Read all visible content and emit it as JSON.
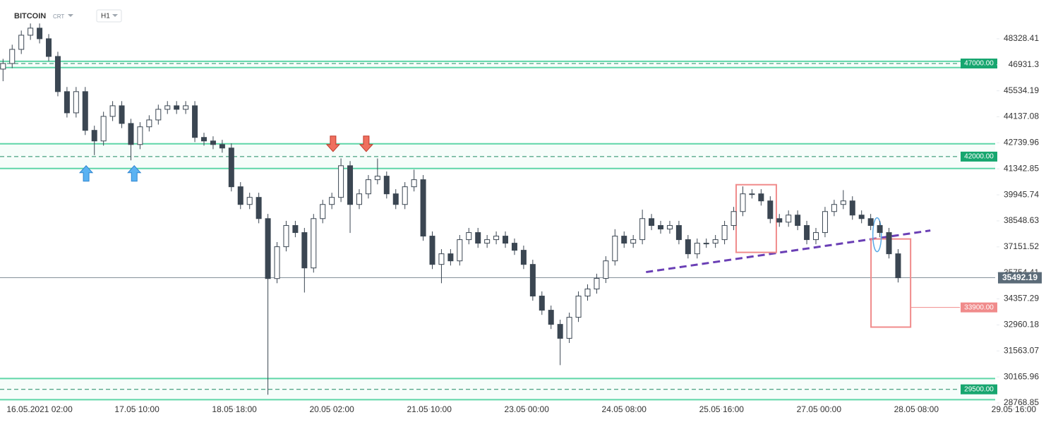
{
  "chart_data": {
    "type": "candlestick",
    "symbol": "BITCOIN",
    "chart_style": "CRT",
    "interval": "H1",
    "candle_color": "#3b4652",
    "xlim": [
      -13,
      322
    ],
    "ylim": [
      28503.8,
      50107.8
    ],
    "yticks": [
      28768.85,
      30165.96,
      31563.07,
      32960.18,
      34357.29,
      35754.41,
      37151.52,
      38548.63,
      39945.74,
      41342.85,
      42739.96,
      44137.08,
      45534.19,
      46931.3,
      48328.41
    ],
    "xticks": [
      {
        "value": 0,
        "label": "16.05.2021  02:00"
      },
      {
        "value": 32,
        "label": "17.05  10:00"
      },
      {
        "value": 64,
        "label": "18.05  18:00"
      },
      {
        "value": 96,
        "label": "20.05  02:00"
      },
      {
        "value": 128,
        "label": "21.05  10:00"
      },
      {
        "value": 160,
        "label": "23.05  00:00"
      },
      {
        "value": 192,
        "label": "24.05  08:00"
      },
      {
        "value": 224,
        "label": "25.05  16:00"
      },
      {
        "value": 256,
        "label": "27.05  00:00"
      },
      {
        "value": 288,
        "label": "28.05  08:00"
      },
      {
        "value": 320,
        "label": "29.05  16:00"
      }
    ],
    "x": [
      -12,
      -9,
      -6,
      -3,
      0,
      3,
      6,
      9,
      12,
      15,
      18,
      21,
      24,
      27,
      30,
      33,
      36,
      39,
      42,
      45,
      48,
      51,
      54,
      57,
      60,
      63,
      66,
      69,
      72,
      75,
      78,
      81,
      84,
      87,
      90,
      93,
      96,
      99,
      102,
      105,
      108,
      111,
      114,
      117,
      120,
      123,
      126,
      129,
      132,
      135,
      138,
      141,
      144,
      147,
      150,
      153,
      156,
      159,
      162,
      165,
      168,
      171,
      174,
      177,
      180,
      183,
      186,
      189,
      192,
      195,
      198,
      201,
      204,
      207,
      210,
      213,
      216,
      219,
      222,
      225,
      228,
      231,
      234,
      237,
      240,
      243,
      246,
      249,
      252,
      255,
      258,
      261,
      264,
      267,
      270,
      273,
      276,
      279,
      282
    ],
    "open": [
      46700,
      47000,
      47760,
      48520,
      48900,
      48330,
      47380,
      45490,
      44350,
      45490,
      43410,
      42840,
      44160,
      44730,
      43780,
      42650,
      43600,
      43970,
      44540,
      44730,
      44540,
      44730,
      43030,
      42840,
      42650,
      42460,
      40380,
      39430,
      39810,
      38670,
      35450,
      37160,
      38300,
      37920,
      36020,
      38670,
      39430,
      39810,
      41510,
      39430,
      40000,
      40760,
      40950,
      40000,
      39430,
      40380,
      40760,
      37730,
      36210,
      36780,
      36400,
      37540,
      37920,
      37350,
      37540,
      37730,
      37350,
      36970,
      36210,
      34510,
      33750,
      32990,
      32240,
      33370,
      34510,
      34890,
      35460,
      36400,
      37730,
      37350,
      37540,
      38670,
      38300,
      38110,
      38300,
      37540,
      36780,
      37350,
      37350,
      37540,
      38300,
      39050,
      40000,
      40000,
      39620,
      38670,
      38480,
      38860,
      38300,
      37540,
      37920,
      39050,
      39430,
      39620,
      38860,
      38670,
      38300,
      37920,
      36780
    ],
    "high": [
      47250,
      48010,
      48770,
      49150,
      49150,
      48580,
      47630,
      45740,
      45740,
      45740,
      43660,
      44410,
      44980,
      44980,
      44030,
      43850,
      44220,
      44790,
      44980,
      44980,
      44980,
      44980,
      43280,
      43090,
      42900,
      42710,
      40630,
      40060,
      40060,
      38920,
      37410,
      38550,
      38550,
      38170,
      38920,
      39680,
      40060,
      41900,
      41760,
      40250,
      41010,
      41900,
      41200,
      40250,
      40630,
      41300,
      41010,
      37980,
      37030,
      37030,
      37790,
      38170,
      38170,
      37790,
      37980,
      37980,
      37600,
      37220,
      36460,
      34760,
      34000,
      33240,
      33620,
      34760,
      35140,
      35710,
      36650,
      38100,
      37980,
      37790,
      39150,
      38920,
      38550,
      38550,
      38550,
      37790,
      37600,
      37600,
      37790,
      38550,
      39300,
      40400,
      40250,
      40250,
      39870,
      38920,
      39110,
      39110,
      38550,
      38170,
      39300,
      39680,
      40200,
      39870,
      39110,
      38920,
      38550,
      38170,
      37030
    ],
    "low": [
      46050,
      46750,
      47510,
      48270,
      48080,
      47130,
      45240,
      44100,
      44100,
      43160,
      42080,
      42590,
      43910,
      43530,
      41800,
      42400,
      43350,
      43720,
      44290,
      44290,
      44290,
      42780,
      42590,
      42400,
      42210,
      40130,
      39180,
      39180,
      38420,
      29210,
      35200,
      36910,
      37670,
      34700,
      35770,
      38420,
      39180,
      39560,
      37900,
      39180,
      39750,
      40510,
      39750,
      39180,
      39180,
      40130,
      37480,
      35960,
      35200,
      36150,
      36150,
      37290,
      37100,
      37100,
      37290,
      37100,
      36720,
      35960,
      34260,
      33500,
      32740,
      30800,
      31990,
      33120,
      34260,
      34640,
      35210,
      36150,
      37100,
      37100,
      37290,
      38050,
      37860,
      37860,
      37290,
      36530,
      36530,
      37100,
      37100,
      37290,
      38050,
      38800,
      39750,
      39370,
      38420,
      38230,
      38230,
      38050,
      37290,
      37290,
      37670,
      38800,
      39180,
      38610,
      38420,
      38050,
      37670,
      36530,
      35240
    ],
    "close": [
      47000,
      47760,
      48520,
      48900,
      48330,
      47380,
      45490,
      44350,
      45490,
      43410,
      42840,
      44160,
      44730,
      43780,
      42650,
      43600,
      43970,
      44540,
      44730,
      44540,
      44730,
      43030,
      42840,
      42650,
      42460,
      40380,
      39430,
      39810,
      38670,
      35450,
      37160,
      38300,
      37920,
      36020,
      38670,
      39430,
      39810,
      41510,
      39430,
      40000,
      40760,
      40950,
      40000,
      39430,
      40380,
      40760,
      37730,
      36210,
      36780,
      36400,
      37540,
      37920,
      37350,
      37540,
      37730,
      37350,
      36970,
      36210,
      34510,
      33750,
      32990,
      32240,
      33370,
      34510,
      34890,
      35460,
      36400,
      37730,
      37350,
      37540,
      38670,
      38300,
      38110,
      38300,
      37540,
      36780,
      37350,
      37350,
      37540,
      38300,
      39050,
      40000,
      40000,
      39620,
      38670,
      38480,
      38860,
      38300,
      37540,
      37920,
      39050,
      39430,
      39620,
      38860,
      38670,
      38300,
      37920,
      36780,
      35492
    ],
    "current_price": 35492.19,
    "current_price_color": "#5b6b78",
    "levels": [
      {
        "value": 47000,
        "label": "47000.00",
        "upper": 47120,
        "lower": 46780,
        "color": "#5fd6a8",
        "label_color": "#17a66f"
      },
      {
        "value": 42000,
        "label": "42000.00",
        "upper": 42690,
        "lower": 41360,
        "color": "#5fd6a8",
        "label_color": "#17a66f"
      },
      {
        "value": 29500,
        "label": "29500.00",
        "upper": 30080,
        "lower": 28944,
        "color": "#5fd6a8",
        "label_color": "#17a66f"
      },
      {
        "value": 33900,
        "label": "33900.00",
        "start": 286.1,
        "color": "#f08b8b",
        "label_color": "#f08b8b"
      }
    ],
    "annotations": [
      {
        "type": "trendline",
        "x": [
          199.2,
          292.6
        ],
        "y": [
          35797,
          38030
        ],
        "color": "#6a3fb5"
      },
      {
        "type": "rect",
        "x": [
          228.8,
          242.0
        ],
        "y": [
          40491,
          36857
        ],
        "color": "#f08b8b"
      },
      {
        "type": "rect",
        "x": [
          273.1,
          286.1
        ],
        "y": [
          37576,
          32843
        ],
        "color": "#f08b8b"
      },
      {
        "type": "ellipse",
        "x": [
          273.7,
          276.5
        ],
        "y": [
          38712,
          36895
        ],
        "color": "#5aa9e6"
      },
      {
        "type": "arrow",
        "direction": "up",
        "x": 15.3,
        "y": 41513,
        "color": "#5ab2f2"
      },
      {
        "type": "arrow",
        "direction": "up",
        "x": 31.1,
        "y": 41513,
        "color": "#5ab2f2"
      },
      {
        "type": "arrow",
        "direction": "down",
        "x": 96.4,
        "y": 42270,
        "color": "#ef6f5e"
      },
      {
        "type": "arrow",
        "direction": "down",
        "x": 107.3,
        "y": 42270,
        "color": "#ef6f5e"
      }
    ]
  }
}
